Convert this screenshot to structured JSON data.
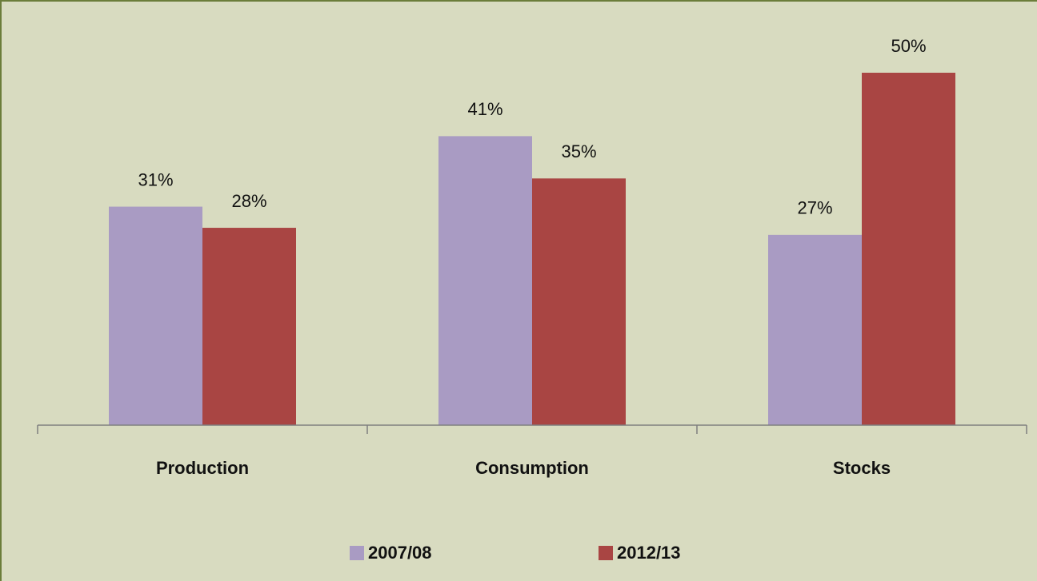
{
  "chart_data": {
    "type": "bar",
    "categories": [
      "Production",
      "Consumption",
      "Stocks"
    ],
    "series": [
      {
        "name": "2007/08",
        "color": "#a99bc3",
        "values": [
          31,
          41,
          27
        ],
        "value_labels": [
          "31%",
          "41%",
          "27%"
        ]
      },
      {
        "name": "2012/13",
        "color": "#a94543",
        "values": [
          28,
          35,
          50
        ],
        "value_labels": [
          "28%",
          "35%",
          "50%"
        ]
      }
    ],
    "legend": "bottom"
  }
}
